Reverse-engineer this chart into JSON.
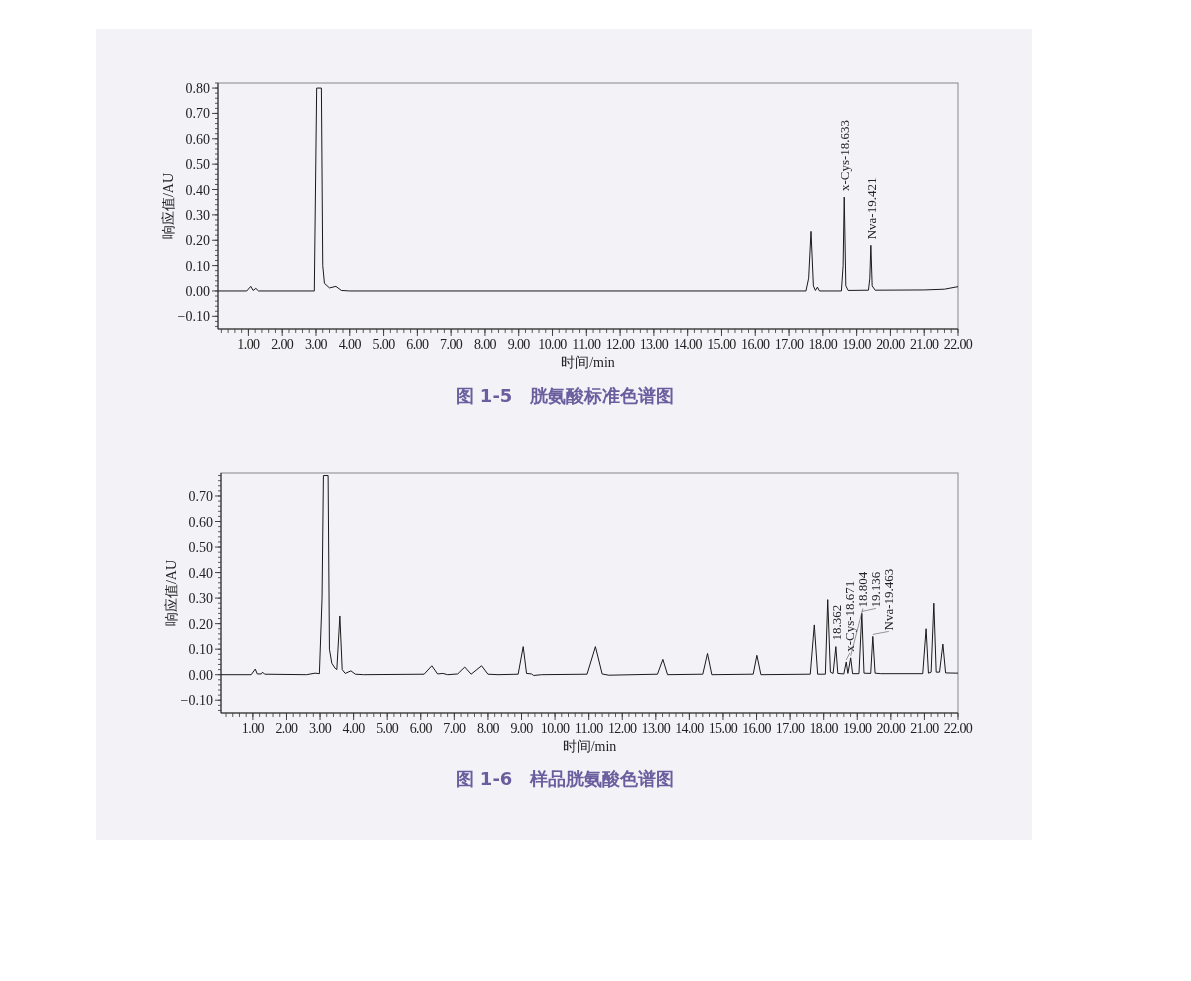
{
  "chart_data": [
    {
      "type": "line",
      "title": "图 1-5　胱氨酸标准色谱图",
      "xlabel": "时间/min",
      "ylabel": "响应值/AU",
      "xlim": [
        0.1,
        22
      ],
      "ylim": [
        -0.15,
        0.82
      ],
      "xticks": [
        {
          "value": 1,
          "label": "1.00"
        },
        {
          "value": 2,
          "label": "2.00"
        },
        {
          "value": 3,
          "label": "3.00"
        },
        {
          "value": 4,
          "label": "4.00"
        },
        {
          "value": 5,
          "label": "5.00"
        },
        {
          "value": 6,
          "label": "6.00"
        },
        {
          "value": 7,
          "label": "7.00"
        },
        {
          "value": 8,
          "label": "8.00"
        },
        {
          "value": 9,
          "label": "9.00"
        },
        {
          "value": 10,
          "label": "10.00"
        },
        {
          "value": 11,
          "label": "11.00"
        },
        {
          "value": 12,
          "label": "12.00"
        },
        {
          "value": 13,
          "label": "13.00"
        },
        {
          "value": 14,
          "label": "14.00"
        },
        {
          "value": 15,
          "label": "15.00"
        },
        {
          "value": 16,
          "label": "16.00"
        },
        {
          "value": 17,
          "label": "17.00"
        },
        {
          "value": 18,
          "label": "18.00"
        },
        {
          "value": 19,
          "label": "19.00"
        },
        {
          "value": 20,
          "label": "20.00"
        },
        {
          "value": 21,
          "label": "21.00"
        },
        {
          "value": 22,
          "label": "22.00"
        }
      ],
      "yticks": [
        {
          "value": -0.1,
          "label": "−0.10"
        },
        {
          "value": 0,
          "label": "0.00"
        },
        {
          "value": 0.1,
          "label": "0.10"
        },
        {
          "value": 0.2,
          "label": "0.20"
        },
        {
          "value": 0.3,
          "label": "0.30"
        },
        {
          "value": 0.4,
          "label": "0.40"
        },
        {
          "value": 0.5,
          "label": "0.50"
        },
        {
          "value": 0.6,
          "label": "0.60"
        },
        {
          "value": 0.7,
          "label": "0.70"
        },
        {
          "value": 0.8,
          "label": "0.80"
        }
      ],
      "x": [
        0.1,
        0.95,
        1.07,
        1.14,
        1.22,
        1.3,
        2.95,
        3.02,
        3.16,
        3.2,
        3.25,
        3.4,
        3.59,
        3.75,
        4.0,
        17.5,
        17.58,
        17.65,
        17.72,
        17.78,
        17.84,
        17.9,
        18.55,
        18.6,
        18.633,
        18.68,
        18.75,
        19.35,
        19.39,
        19.421,
        19.46,
        19.55,
        21.0,
        21.6,
        22.0
      ],
      "series": [
        {
          "color": "#1a1a1a",
          "values": [
            0,
            0,
            0.018,
            0.002,
            0.01,
            0,
            0,
            0.8,
            0.8,
            0.1,
            0.03,
            0.012,
            0.018,
            0.002,
            0,
            0,
            0.05,
            0.235,
            0.02,
            0.002,
            0.015,
            0,
            0,
            0.1,
            0.37,
            0.02,
            0.002,
            0.003,
            0.05,
            0.18,
            0.02,
            0.003,
            0.004,
            0.007,
            0.017
          ]
        }
      ],
      "annotations": [
        {
          "text": "x-Cys-18.633",
          "x": 18.633,
          "y": 0.37
        },
        {
          "text": "Nva-19.421",
          "x": 19.421,
          "y": 0.18
        }
      ]
    },
    {
      "type": "line",
      "title": "图 1-6　样品胱氨酸色谱图",
      "xlabel": "时间/min",
      "ylabel": "响应值/AU",
      "xlim": [
        0.05,
        22
      ],
      "ylim": [
        -0.15,
        0.79
      ],
      "xticks": [
        {
          "value": 1,
          "label": "1.00"
        },
        {
          "value": 2,
          "label": "2.00"
        },
        {
          "value": 3,
          "label": "3.00"
        },
        {
          "value": 4,
          "label": "4.00"
        },
        {
          "value": 5,
          "label": "5.00"
        },
        {
          "value": 6,
          "label": "6.00"
        },
        {
          "value": 7,
          "label": "7.00"
        },
        {
          "value": 8,
          "label": "8.00"
        },
        {
          "value": 9,
          "label": "9.00"
        },
        {
          "value": 10,
          "label": "10.00"
        },
        {
          "value": 11,
          "label": "11.00"
        },
        {
          "value": 12,
          "label": "12.00"
        },
        {
          "value": 13,
          "label": "13.00"
        },
        {
          "value": 14,
          "label": "14.00"
        },
        {
          "value": 15,
          "label": "15.00"
        },
        {
          "value": 16,
          "label": "16.00"
        },
        {
          "value": 17,
          "label": "17.00"
        },
        {
          "value": 18,
          "label": "18.00"
        },
        {
          "value": 19,
          "label": "19.00"
        },
        {
          "value": 20,
          "label": "20.00"
        },
        {
          "value": 21,
          "label": "21.00"
        },
        {
          "value": 22,
          "label": "22.00"
        }
      ],
      "yticks": [
        {
          "value": -0.1,
          "label": "−0.10"
        },
        {
          "value": 0,
          "label": "0.00"
        },
        {
          "value": 0.1,
          "label": "0.10"
        },
        {
          "value": 0.2,
          "label": "0.20"
        },
        {
          "value": 0.3,
          "label": "0.30"
        },
        {
          "value": 0.4,
          "label": "0.40"
        },
        {
          "value": 0.5,
          "label": "0.50"
        },
        {
          "value": 0.6,
          "label": "0.60"
        },
        {
          "value": 0.7,
          "label": "0.70"
        }
      ],
      "x": [
        0.05,
        0.95,
        1.07,
        1.13,
        1.25,
        1.29,
        1.35,
        2.6,
        2.85,
        2.98,
        3.06,
        3.1,
        3.24,
        3.28,
        3.35,
        3.45,
        3.5,
        3.59,
        3.66,
        3.75,
        3.92,
        4.05,
        4.3,
        6.1,
        6.33,
        6.5,
        6.66,
        6.8,
        7.1,
        7.31,
        7.5,
        7.81,
        8.0,
        8.3,
        8.9,
        9.05,
        9.15,
        9.3,
        9.36,
        9.6,
        10.95,
        11.2,
        11.4,
        11.6,
        13.05,
        13.21,
        13.35,
        14.4,
        14.54,
        14.67,
        15.9,
        16.01,
        16.13,
        17.6,
        17.72,
        17.82,
        18.05,
        18.12,
        18.2,
        18.28,
        18.362,
        18.42,
        18.6,
        18.671,
        18.72,
        18.804,
        18.86,
        19.05,
        19.136,
        19.2,
        19.4,
        19.463,
        19.53,
        19.7,
        20.95,
        21.05,
        21.12,
        21.2,
        21.28,
        21.35,
        21.45,
        21.55,
        21.63,
        22.0
      ],
      "series": [
        {
          "color": "#1a1a1a",
          "values": [
            0,
            0,
            0.022,
            0.003,
            0.003,
            0.01,
            0.002,
            0,
            0.006,
            0.004,
            0.3,
            0.78,
            0.78,
            0.1,
            0.045,
            0.025,
            0.02,
            0.23,
            0.02,
            0.005,
            0.015,
            0.002,
            0,
            0.002,
            0.035,
            0.003,
            0.005,
            0,
            0.003,
            0.03,
            0.002,
            0.035,
            0.002,
            0,
            0.002,
            0.11,
            0.005,
            0.003,
            -0.003,
            0,
            0.002,
            0.11,
            0.003,
            -0.002,
            0.002,
            0.06,
            0,
            0.002,
            0.083,
            0,
            0.002,
            0.076,
            0,
            0.002,
            0.195,
            0.002,
            0.002,
            0.294,
            0.01,
            0.005,
            0.11,
            0.005,
            0.003,
            0.05,
            0.005,
            0.066,
            0.004,
            0.004,
            0.24,
            0.006,
            0.005,
            0.15,
            0.006,
            0.004,
            0.004,
            0.18,
            0.006,
            0.01,
            0.28,
            0.01,
            0.01,
            0.12,
            0.007,
            0.006
          ]
        }
      ],
      "annotations": [
        {
          "text": "18.362",
          "x": 18.362,
          "y": 0.11
        },
        {
          "text": "x-Cys-18.671",
          "x": 18.671,
          "y": 0.05
        },
        {
          "text": "18.804",
          "x": 18.804,
          "y": 0.066
        },
        {
          "text": "19.136",
          "x": 19.136,
          "y": 0.24
        },
        {
          "text": "Nva-19.463",
          "x": 19.463,
          "y": 0.15
        }
      ]
    }
  ]
}
